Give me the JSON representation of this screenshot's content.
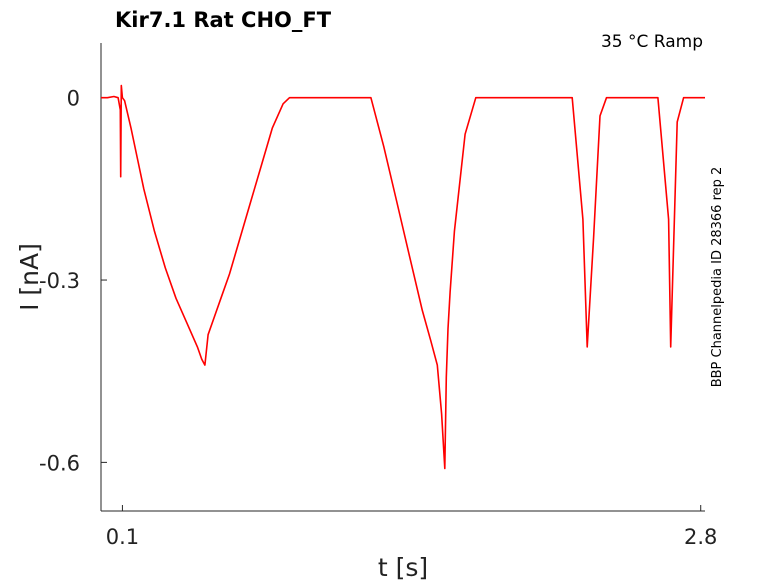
{
  "chart_data": {
    "type": "line",
    "title": "Kir7.1  Rat  CHO_FT",
    "condition_label": "35 °C  Ramp",
    "side_label": "BBP Channelpedia ID 28366 rep 2",
    "xlabel": "t [s]",
    "ylabel": "I [nA]",
    "xlim": [
      0.0,
      2.82
    ],
    "ylim": [
      -0.68,
      0.09
    ],
    "x_ticks": [
      {
        "value": 0.1,
        "label": "0.1"
      },
      {
        "value": 2.8,
        "label": "2.8"
      }
    ],
    "y_ticks": [
      {
        "value": 0.0,
        "label": "0"
      },
      {
        "value": -0.3,
        "label": "-0.3"
      },
      {
        "value": -0.6,
        "label": "-0.6"
      }
    ],
    "grid": false,
    "line_color": "#ff0000",
    "series": [
      {
        "x": [
          0.0,
          0.03,
          0.06,
          0.08,
          0.09,
          0.092,
          0.095,
          0.1,
          0.11,
          0.14,
          0.17,
          0.2,
          0.25,
          0.3,
          0.35,
          0.4,
          0.45,
          0.47,
          0.485,
          0.5,
          0.53,
          0.56,
          0.6,
          0.65,
          0.7,
          0.75,
          0.8,
          0.85,
          0.88,
          1.0,
          1.1,
          1.2,
          1.26,
          1.32,
          1.38,
          1.44,
          1.5,
          1.54,
          1.57,
          1.59,
          1.605,
          1.612,
          1.62,
          1.63,
          1.65,
          1.7,
          1.75,
          1.8,
          1.84,
          1.88,
          2.0,
          2.1,
          2.2,
          2.25,
          2.27,
          2.3,
          2.33,
          2.36,
          2.38,
          2.4,
          2.45,
          2.5,
          2.55,
          2.6,
          2.65,
          2.66,
          2.69,
          2.72,
          2.74,
          2.76,
          2.82
        ],
        "y": [
          0.0,
          0.0,
          0.002,
          0.0,
          -0.02,
          -0.13,
          0.02,
          0.0,
          -0.005,
          -0.05,
          -0.1,
          -0.15,
          -0.22,
          -0.28,
          -0.33,
          -0.37,
          -0.41,
          -0.43,
          -0.44,
          -0.39,
          -0.36,
          -0.33,
          -0.29,
          -0.23,
          -0.17,
          -0.11,
          -0.05,
          -0.01,
          0.0,
          0.0,
          0.0,
          0.0,
          0.0,
          -0.08,
          -0.17,
          -0.26,
          -0.35,
          -0.4,
          -0.44,
          -0.52,
          -0.61,
          -0.46,
          -0.38,
          -0.32,
          -0.22,
          -0.06,
          0.0,
          0.0,
          0.0,
          0.0,
          0.0,
          0.0,
          0.0,
          -0.2,
          -0.41,
          -0.23,
          -0.03,
          0.0,
          0.0,
          0.0,
          0.0,
          0.0,
          0.0,
          0.0,
          -0.2,
          -0.41,
          -0.04,
          0.0,
          0.0,
          0.0,
          0.0
        ]
      }
    ]
  }
}
